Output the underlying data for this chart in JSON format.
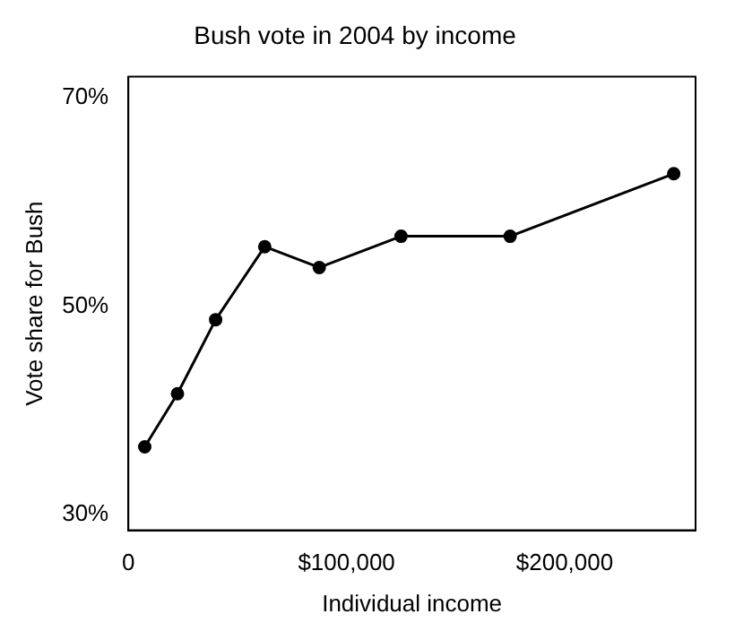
{
  "chart_data": {
    "type": "line",
    "title": "Bush vote in 2004 by income",
    "xlabel": "Individual income",
    "ylabel": "Vote share for Bush",
    "x": [
      7500,
      22500,
      40000,
      62500,
      87500,
      125000,
      175000,
      250000
    ],
    "series": [
      {
        "color": "#000000",
        "values": [
          36.5,
          41.6,
          48.7,
          55.7,
          53.7,
          56.7,
          56.7,
          62.7
        ]
      }
    ],
    "xlim": [
      0,
      260000
    ],
    "xticks": [
      0,
      {
        "value": 100000,
        "label": "$100,000"
      },
      {
        "value": 200000,
        "label": "$200,000"
      }
    ],
    "ylim": [
      28.5,
      72
    ],
    "yticks": [
      {
        "value": 30,
        "label": "30%"
      },
      {
        "value": 50,
        "label": "50%"
      },
      {
        "value": 70,
        "label": "70%"
      }
    ],
    "grid": false,
    "legend": false,
    "marker": "circle",
    "line_style": "solid"
  }
}
